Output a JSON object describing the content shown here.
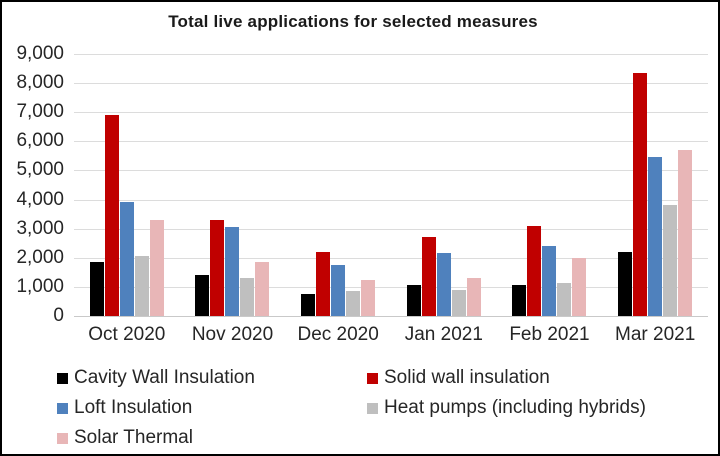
{
  "chart_data": {
    "type": "bar",
    "title": "Total live applications for selected measures",
    "categories": [
      "Oct 2020",
      "Nov 2020",
      "Dec 2020",
      "Jan 2021",
      "Feb 2021",
      "Mar 2021"
    ],
    "series": [
      {
        "name": "Cavity Wall Insulation",
        "color": "#000000",
        "values": [
          1850,
          1400,
          750,
          1050,
          1050,
          2200
        ]
      },
      {
        "name": "Solid wall insulation",
        "color": "#C00000",
        "values": [
          6900,
          3300,
          2200,
          2700,
          3100,
          8350
        ]
      },
      {
        "name": "Loft Insulation",
        "color": "#4F81BD",
        "values": [
          3900,
          3050,
          1750,
          2150,
          2400,
          5450
        ]
      },
      {
        "name": "Heat pumps (including hybrids)",
        "color": "#BFBFBF",
        "values": [
          2050,
          1300,
          850,
          900,
          1150,
          3800
        ]
      },
      {
        "name": "Solar Thermal",
        "color": "#E8B6B7",
        "values": [
          3300,
          1850,
          1250,
          1300,
          2000,
          5700
        ]
      }
    ],
    "ylim": [
      0,
      9000
    ],
    "ytick_step": 1000,
    "ytick_labels": [
      "0",
      "1,000",
      "2,000",
      "3,000",
      "4,000",
      "5,000",
      "6,000",
      "7,000",
      "8,000",
      "9,000"
    ],
    "grid": true,
    "legend_position": "bottom-two-columns",
    "gridline_color": "#DCDCDC"
  }
}
